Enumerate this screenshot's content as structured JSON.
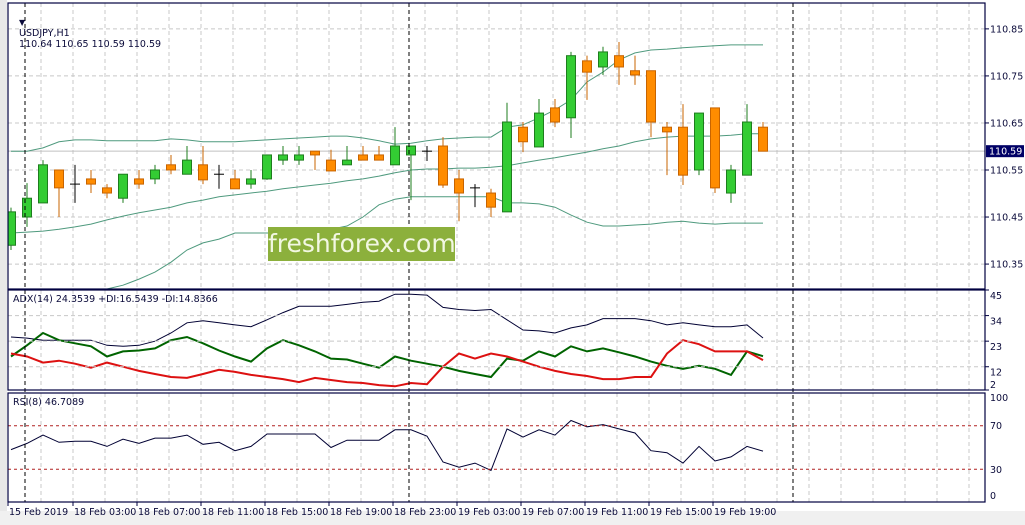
{
  "header": {
    "symbol": "USDJPY,H1",
    "ohlc": "110.64 110.65 110.59 110.59"
  },
  "watermark": "freshforex.com",
  "colors": {
    "bull": "#33cc33",
    "bull_border": "#1e7d1e",
    "bear": "#ff8c00",
    "bear_border": "#c86400",
    "bands": "#4f9a7e",
    "adx": "#000033",
    "plus_di": "#006400",
    "minus_di": "#dd1111",
    "rsi": "#000033",
    "level": "#b02020",
    "frame": "#000040",
    "grid": "#c8c8c8"
  },
  "price_axis": {
    "labels": [
      "110.85",
      "110.75",
      "110.65",
      "110.55",
      "110.45",
      "110.35"
    ],
    "current": "110.59",
    "range": [
      110.297,
      110.905
    ]
  },
  "chart_data": [
    {
      "type": "candlestick",
      "title": "USDJPY,H1",
      "ohlc": [
        [
          110.39,
          110.47,
          110.38,
          110.461
        ],
        [
          110.45,
          110.522,
          110.429,
          110.49
        ],
        [
          110.48,
          110.571,
          110.48,
          110.561
        ],
        [
          110.55,
          110.55,
          110.45,
          110.512
        ],
        [
          110.52,
          110.561,
          110.48,
          110.52
        ],
        [
          110.531,
          110.55,
          110.501,
          110.52
        ],
        [
          110.512,
          110.52,
          110.49,
          110.501
        ],
        [
          110.49,
          110.541,
          110.48,
          110.541
        ],
        [
          110.531,
          110.55,
          110.51,
          110.52
        ],
        [
          110.531,
          110.561,
          110.52,
          110.55
        ],
        [
          110.561,
          110.582,
          110.541,
          110.55
        ],
        [
          110.541,
          110.601,
          110.541,
          110.571
        ],
        [
          110.561,
          110.601,
          110.52,
          110.529
        ],
        [
          110.541,
          110.561,
          110.51,
          110.541
        ],
        [
          110.531,
          110.55,
          110.51,
          110.51
        ],
        [
          110.52,
          110.55,
          110.51,
          110.531
        ],
        [
          110.531,
          110.582,
          110.529,
          110.582
        ],
        [
          110.571,
          110.601,
          110.561,
          110.582
        ],
        [
          110.571,
          110.601,
          110.561,
          110.582
        ],
        [
          110.59,
          110.59,
          110.55,
          110.582
        ],
        [
          110.571,
          110.593,
          110.548,
          110.548
        ],
        [
          110.561,
          110.601,
          110.561,
          110.571
        ],
        [
          110.582,
          110.601,
          110.571,
          110.571
        ],
        [
          110.582,
          110.601,
          110.571,
          110.571
        ],
        [
          110.561,
          110.641,
          110.561,
          110.601
        ],
        [
          110.582,
          110.601,
          110.486,
          110.601
        ],
        [
          110.59,
          110.601,
          110.569,
          110.59
        ],
        [
          110.601,
          110.62,
          110.512,
          110.518
        ],
        [
          110.531,
          110.55,
          110.441,
          110.501
        ],
        [
          110.512,
          110.52,
          110.471,
          110.512
        ],
        [
          110.501,
          110.51,
          110.45,
          110.471
        ],
        [
          110.461,
          110.693,
          110.461,
          110.652
        ],
        [
          110.641,
          110.652,
          110.588,
          110.61
        ],
        [
          110.599,
          110.701,
          110.599,
          110.671
        ],
        [
          110.682,
          110.701,
          110.641,
          110.652
        ],
        [
          110.661,
          110.801,
          110.618,
          110.793
        ],
        [
          110.782,
          110.793,
          110.699,
          110.758
        ],
        [
          110.769,
          110.812,
          110.752,
          110.801
        ],
        [
          110.793,
          110.822,
          110.731,
          110.769
        ],
        [
          110.761,
          110.793,
          110.731,
          110.752
        ],
        [
          110.761,
          110.761,
          110.62,
          110.652
        ],
        [
          110.641,
          110.652,
          110.539,
          110.631
        ],
        [
          110.641,
          110.69,
          110.518,
          110.539
        ],
        [
          110.55,
          110.671,
          110.539,
          110.671
        ],
        [
          110.682,
          110.682,
          110.501,
          110.512
        ],
        [
          110.501,
          110.561,
          110.48,
          110.55
        ],
        [
          110.539,
          110.69,
          110.539,
          110.652
        ],
        [
          110.641,
          110.652,
          110.59,
          110.59
        ]
      ],
      "bollinger": {
        "upper": [
          110.59,
          110.59,
          110.597,
          110.61,
          110.614,
          110.614,
          110.612,
          110.612,
          110.612,
          110.612,
          110.616,
          110.614,
          110.61,
          110.61,
          110.61,
          110.612,
          110.614,
          110.616,
          110.618,
          110.62,
          110.622,
          110.622,
          110.618,
          110.612,
          110.605,
          110.607,
          110.612,
          110.616,
          110.618,
          110.62,
          110.62,
          110.641,
          110.646,
          110.661,
          110.678,
          110.699,
          110.737,
          110.758,
          110.784,
          110.799,
          110.805,
          110.807,
          110.81,
          110.812,
          110.814,
          110.816,
          110.816,
          110.816
        ],
        "middle": [
          110.416,
          110.418,
          110.42,
          110.424,
          110.429,
          110.435,
          110.444,
          110.452,
          110.459,
          110.465,
          110.471,
          110.48,
          110.486,
          110.493,
          110.497,
          110.501,
          110.505,
          110.51,
          110.514,
          110.518,
          110.522,
          110.527,
          110.531,
          110.537,
          110.544,
          110.55,
          110.552,
          110.552,
          110.554,
          110.554,
          110.556,
          110.559,
          110.565,
          110.571,
          110.576,
          110.582,
          110.588,
          110.595,
          110.601,
          110.61,
          110.616,
          110.62,
          110.622,
          110.622,
          110.622,
          110.624,
          110.627,
          110.627
        ],
        "lower": [
          110.231,
          110.241,
          110.252,
          110.263,
          110.273,
          110.286,
          110.297,
          110.305,
          110.318,
          110.333,
          110.354,
          110.38,
          110.395,
          110.403,
          110.416,
          110.416,
          110.416,
          110.416,
          110.418,
          110.42,
          110.424,
          110.431,
          110.45,
          110.476,
          110.488,
          110.493,
          110.493,
          110.493,
          110.493,
          110.493,
          110.493,
          110.48,
          110.48,
          110.478,
          110.471,
          110.454,
          110.439,
          110.431,
          110.431,
          110.433,
          110.435,
          110.439,
          110.441,
          110.437,
          110.435,
          110.437,
          110.437,
          110.437
        ]
      },
      "ylim": [
        110.297,
        110.905
      ]
    },
    {
      "type": "line",
      "title": "ADX(14) 24.3539 +DI:16.5439 -DI:14.8366",
      "yticks": [
        "45",
        "34",
        "23",
        "12",
        "2"
      ],
      "ylim": [
        2,
        45
      ],
      "series": [
        {
          "name": "ADX",
          "values": [
            24.8,
            24.3,
            23.4,
            23.4,
            23.4,
            23.4,
            21.2,
            20.8,
            21.2,
            23.0,
            26.5,
            30.9,
            31.8,
            30.9,
            30.0,
            29.2,
            32.2,
            35.3,
            38.0,
            38.0,
            38.0,
            38.8,
            39.7,
            40.2,
            43.2,
            43.2,
            42.8,
            37.5,
            36.6,
            36.2,
            36.6,
            32.2,
            27.8,
            27.4,
            26.5,
            28.7,
            30.0,
            32.7,
            32.7,
            32.7,
            31.8,
            30.0,
            30.9,
            30.0,
            29.2,
            29.2,
            30.0,
            24.35
          ]
        },
        {
          "name": "+DI",
          "values": [
            16.4,
            21.2,
            26.5,
            23.4,
            22.1,
            20.8,
            16.4,
            18.6,
            19.0,
            19.9,
            23.4,
            24.8,
            22.1,
            19.0,
            16.4,
            14.2,
            19.9,
            23.4,
            21.2,
            18.6,
            15.5,
            15.1,
            13.3,
            11.6,
            16.4,
            14.6,
            13.3,
            12.0,
            10.2,
            8.9,
            7.6,
            15.5,
            14.6,
            18.6,
            16.4,
            20.8,
            18.6,
            19.9,
            18.2,
            16.4,
            14.2,
            12.4,
            11.1,
            12.4,
            11.1,
            8.5,
            18.6,
            16.54
          ]
        },
        {
          "name": "-DI",
          "values": [
            17.7,
            16.4,
            13.8,
            14.6,
            13.3,
            11.6,
            13.8,
            12.0,
            10.2,
            8.9,
            7.6,
            7.2,
            8.9,
            10.7,
            9.8,
            8.5,
            7.6,
            6.7,
            5.4,
            7.2,
            6.3,
            5.4,
            5.0,
            4.1,
            3.6,
            5.0,
            4.5,
            12.0,
            17.7,
            15.5,
            17.7,
            16.4,
            14.2,
            12.0,
            10.2,
            8.9,
            8.0,
            6.7,
            6.7,
            7.6,
            7.6,
            17.7,
            23.4,
            21.7,
            18.6,
            18.6,
            18.6,
            14.84
          ]
        }
      ]
    },
    {
      "type": "line",
      "title": "RSI(8) 46.7089",
      "yticks": [
        "100",
        "70",
        "30",
        "0"
      ],
      "levels": [
        70,
        30
      ],
      "ylim": [
        0,
        100
      ],
      "series": [
        {
          "name": "RSI",
          "values": [
            48.1,
            53.8,
            61.4,
            54.8,
            55.7,
            55.7,
            51.0,
            57.6,
            53.8,
            58.6,
            58.6,
            61.4,
            52.9,
            54.8,
            47.1,
            51.0,
            62.4,
            62.4,
            62.4,
            62.4,
            50.0,
            56.7,
            56.7,
            56.7,
            66.2,
            66.2,
            60.5,
            36.7,
            31.9,
            35.7,
            29.0,
            67.1,
            59.5,
            66.2,
            61.4,
            74.8,
            69.0,
            71.0,
            67.1,
            63.3,
            47.1,
            45.2,
            35.7,
            51.0,
            37.6,
            41.4,
            51.0,
            46.7
          ]
        }
      ]
    }
  ],
  "time_axis": {
    "labels": [
      "15 Feb 2019",
      "18 Feb 03:00",
      "18 Feb 07:00",
      "18 Feb 11:00",
      "18 Feb 15:00",
      "18 Feb 19:00",
      "18 Feb 23:00",
      "19 Feb 03:00",
      "19 Feb 07:00",
      "19 Feb 11:00",
      "19 Feb 15:00",
      "19 Feb 19:00"
    ]
  }
}
